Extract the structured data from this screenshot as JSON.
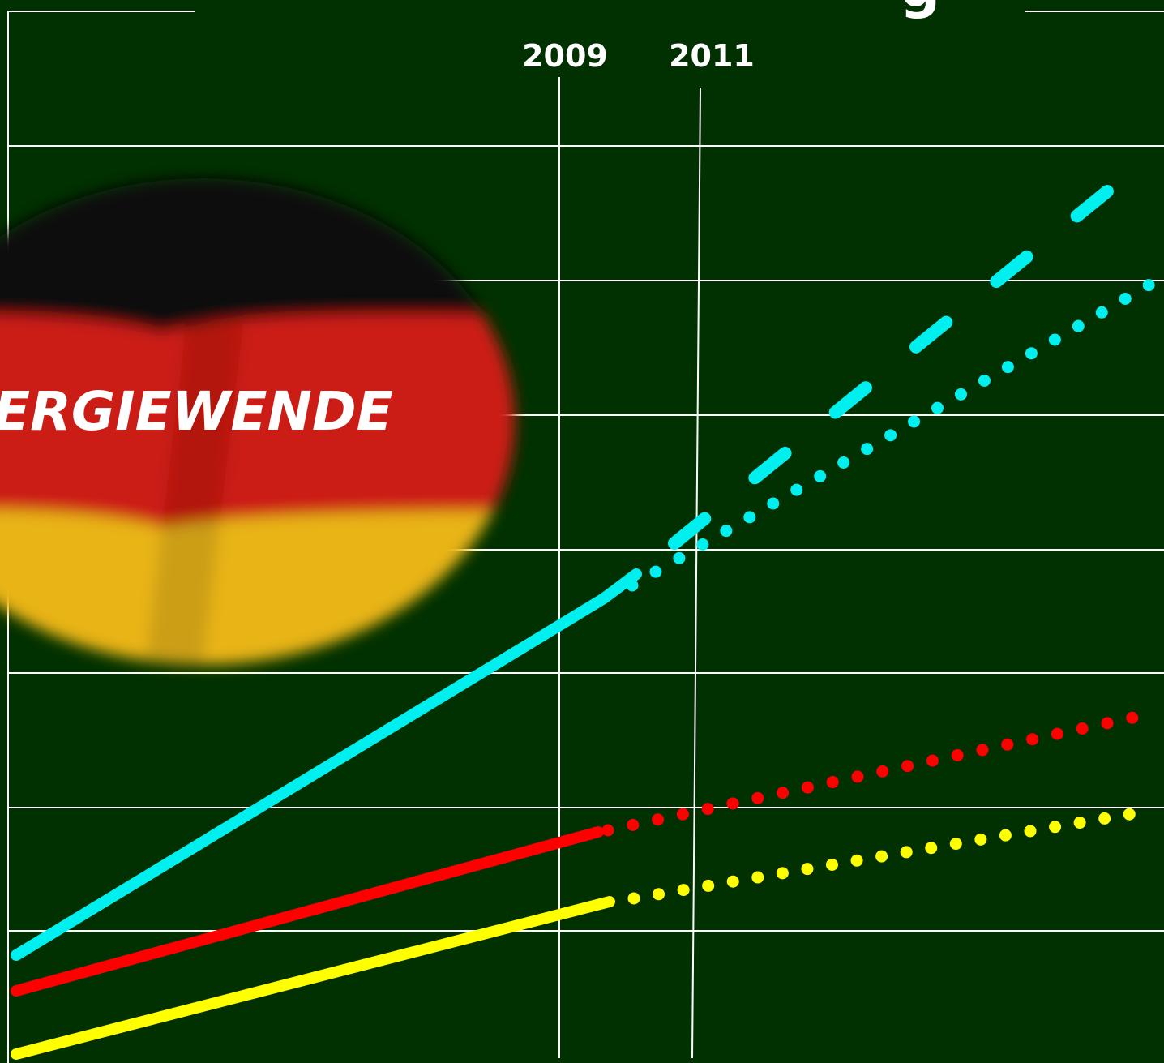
{
  "title_fragment": "g",
  "year_labels": [
    "2009",
    "2011"
  ],
  "flag_text": "ERGIEWENDE"
}
